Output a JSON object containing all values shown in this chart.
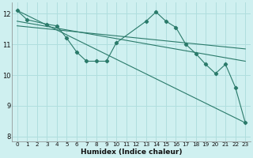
{
  "xlabel": "Humidex (Indice chaleur)",
  "bg_color": "#cff0f0",
  "grid_color": "#b0dede",
  "line_color": "#2a7a6a",
  "xlim": [
    -0.5,
    23.5
  ],
  "ylim": [
    7.85,
    12.35
  ],
  "yticks": [
    8,
    9,
    10,
    11,
    12
  ],
  "xticks": [
    0,
    1,
    2,
    3,
    4,
    5,
    6,
    7,
    8,
    9,
    10,
    11,
    12,
    13,
    14,
    15,
    16,
    17,
    18,
    19,
    20,
    21,
    22,
    23
  ],
  "series": [
    {
      "x": [
        0,
        1,
        3,
        4,
        5,
        6,
        7,
        8,
        9,
        10,
        13,
        14,
        15,
        16,
        17,
        18,
        19,
        20,
        21,
        22,
        23
      ],
      "y": [
        12.1,
        11.8,
        11.65,
        11.6,
        11.2,
        10.75,
        10.45,
        10.45,
        10.45,
        11.05,
        11.75,
        12.05,
        11.75,
        11.55,
        11.0,
        10.7,
        10.35,
        10.05,
        10.35,
        9.6,
        8.45
      ],
      "has_markers": true
    },
    {
      "x": [
        0,
        23
      ],
      "y": [
        12.1,
        8.45
      ],
      "has_markers": false
    },
    {
      "x": [
        0,
        23
      ],
      "y": [
        11.75,
        10.45
      ],
      "has_markers": false
    },
    {
      "x": [
        0,
        23
      ],
      "y": [
        11.6,
        10.85
      ],
      "has_markers": false
    }
  ]
}
